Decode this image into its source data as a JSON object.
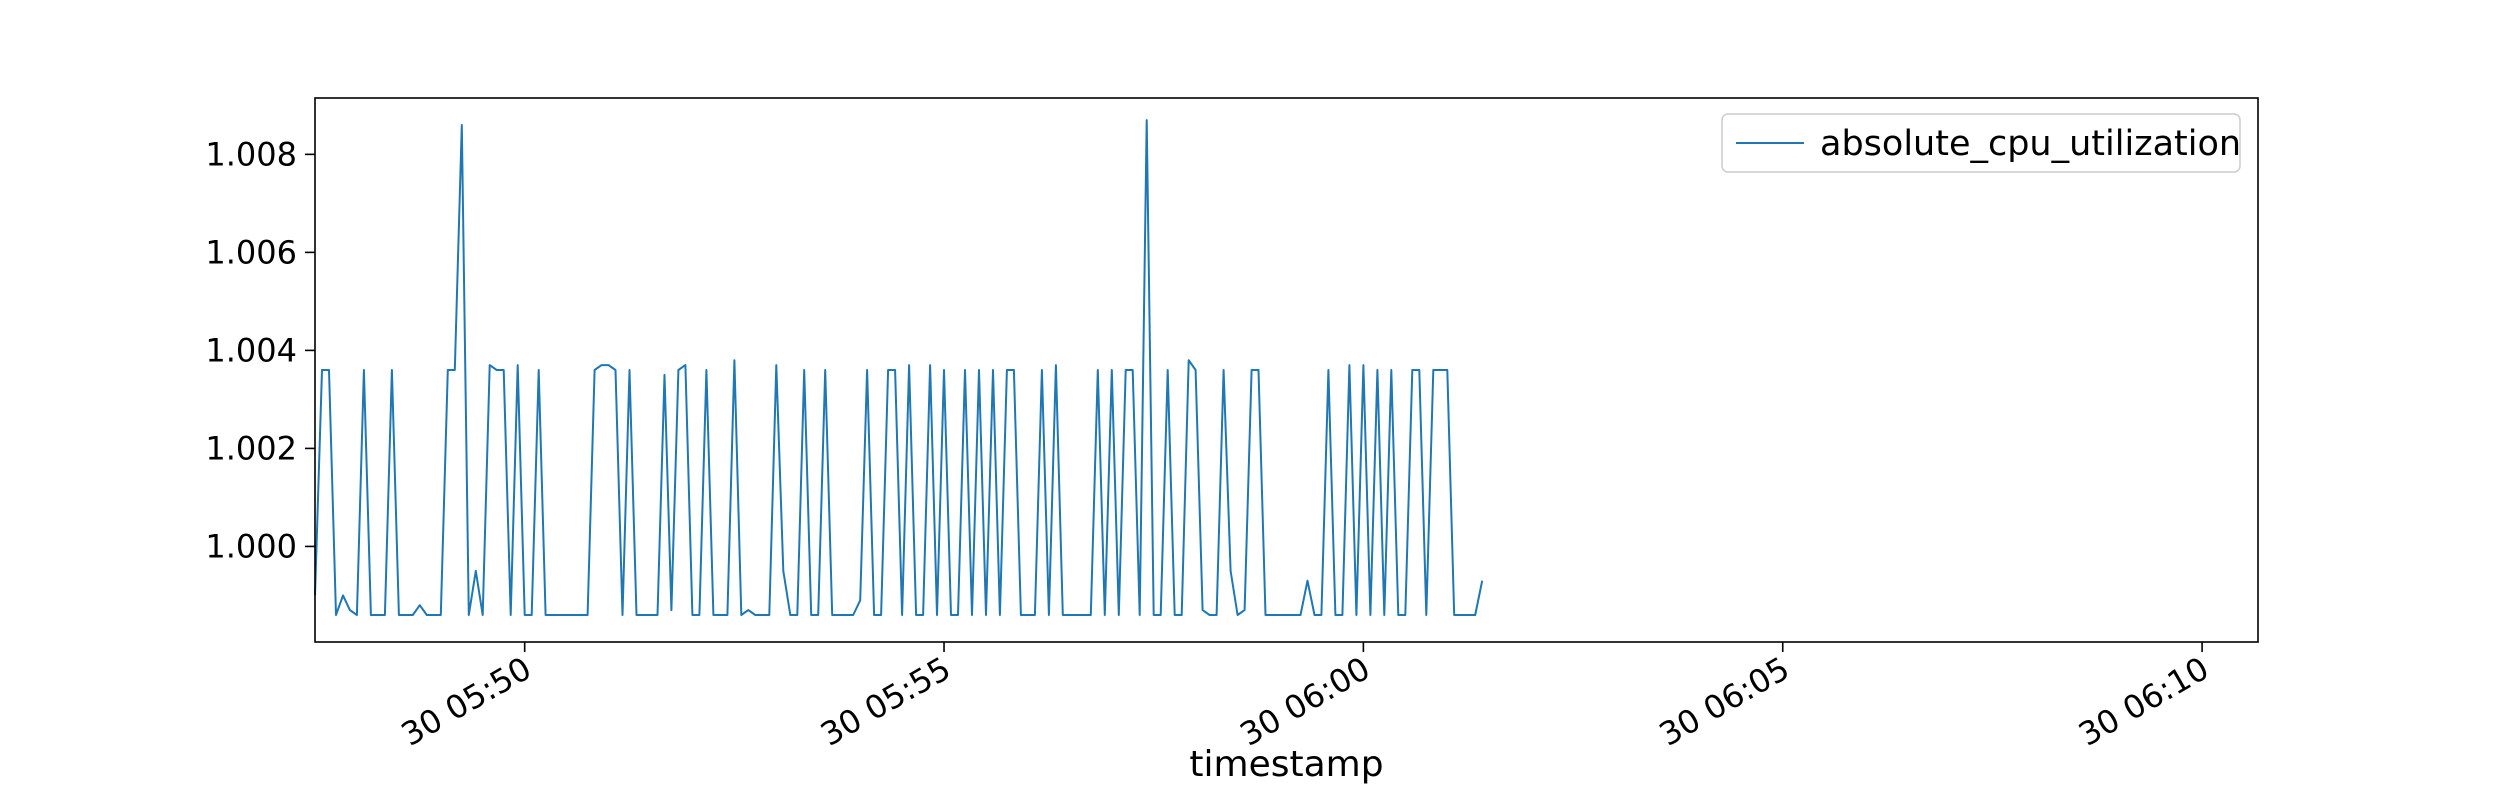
{
  "chart_data": {
    "type": "line",
    "title": "",
    "xlabel": "timestamp",
    "ylabel": "",
    "x_start": "2024-01-30 05:47:30",
    "x_end": "2024-01-30 06:10:40",
    "xlim": [
      "2024-01-30 05:47:30",
      "2024-01-30 06:10:40"
    ],
    "ylim": [
      0.99805,
      1.00915
    ],
    "grid": false,
    "legend_position": "top-right",
    "x_ticks": [
      {
        "value": "2024-01-30 05:50:00",
        "label": "30 05:50"
      },
      {
        "value": "2024-01-30 05:55:00",
        "label": "30 05:55"
      },
      {
        "value": "2024-01-30 06:00:00",
        "label": "30 06:00"
      },
      {
        "value": "2024-01-30 06:05:00",
        "label": "30 06:05"
      },
      {
        "value": "2024-01-30 06:10:00",
        "label": "30 06:10"
      }
    ],
    "y_ticks": [
      {
        "value": 1.0,
        "label": "1.000"
      },
      {
        "value": 1.002,
        "label": "1.002"
      },
      {
        "value": 1.004,
        "label": "1.004"
      },
      {
        "value": 1.006,
        "label": "1.006"
      },
      {
        "value": 1.008,
        "label": "1.008"
      }
    ],
    "series": [
      {
        "name": "absolute_cpu_utilization",
        "color": "#1f77b4",
        "sample_interval_seconds": 5,
        "values": [
          0.999,
          1.0036,
          1.0036,
          0.9986,
          0.999,
          0.9987,
          0.9986,
          1.0036,
          0.9986,
          0.9986,
          0.9986,
          1.0036,
          0.9986,
          0.9986,
          0.9986,
          0.9988,
          0.9986,
          0.9986,
          0.9986,
          1.0036,
          1.0036,
          1.0086,
          0.9986,
          0.9995,
          0.9986,
          1.0037,
          1.0036,
          1.0036,
          0.9986,
          1.0037,
          0.9986,
          0.9986,
          1.0036,
          0.9986,
          0.9986,
          0.9986,
          0.9986,
          0.9986,
          0.9986,
          0.9986,
          1.0036,
          1.0037,
          1.0037,
          1.0036,
          0.9986,
          1.0036,
          0.9986,
          0.9986,
          0.9986,
          0.9986,
          1.0035,
          0.9987,
          1.0036,
          1.0037,
          0.9986,
          0.9986,
          1.0036,
          0.9986,
          0.9986,
          0.9986,
          1.0038,
          0.9986,
          0.9987,
          0.9986,
          0.9986,
          0.9986,
          1.0037,
          0.9995,
          0.9986,
          0.9986,
          1.0036,
          0.9986,
          0.9986,
          1.0036,
          0.9986,
          0.9986,
          0.9986,
          0.9986,
          0.9989,
          1.0036,
          0.9986,
          0.9986,
          1.0036,
          1.0036,
          0.9986,
          1.0037,
          0.9986,
          0.9986,
          1.0037,
          0.9986,
          1.0036,
          0.9986,
          0.9986,
          1.0036,
          0.9986,
          1.0036,
          0.9986,
          1.0036,
          0.9986,
          1.0036,
          1.0036,
          0.9986,
          0.9986,
          0.9986,
          1.0036,
          0.9986,
          1.0037,
          0.9986,
          0.9986,
          0.9986,
          0.9986,
          0.9986,
          1.0036,
          0.9986,
          1.0036,
          0.9986,
          1.0036,
          1.0036,
          0.9986,
          1.0087,
          0.9986,
          0.9986,
          1.0036,
          0.9986,
          0.9986,
          1.0038,
          1.0036,
          0.9987,
          0.9986,
          0.9986,
          1.0036,
          0.9995,
          0.9986,
          0.9987,
          1.0036,
          1.0036,
          0.9986,
          0.9986,
          0.9986,
          0.9986,
          0.9986,
          0.9986,
          0.9993,
          0.9986,
          0.9986,
          1.0036,
          0.9986,
          0.9986,
          1.0037,
          0.9986,
          1.0037,
          0.9986,
          1.0036,
          0.9986,
          1.0036,
          0.9986,
          0.9986,
          1.0036,
          1.0036,
          0.9986,
          1.0036,
          1.0036,
          1.0036,
          0.9986,
          0.9986,
          0.9986,
          0.9986,
          0.9993
        ]
      }
    ]
  }
}
